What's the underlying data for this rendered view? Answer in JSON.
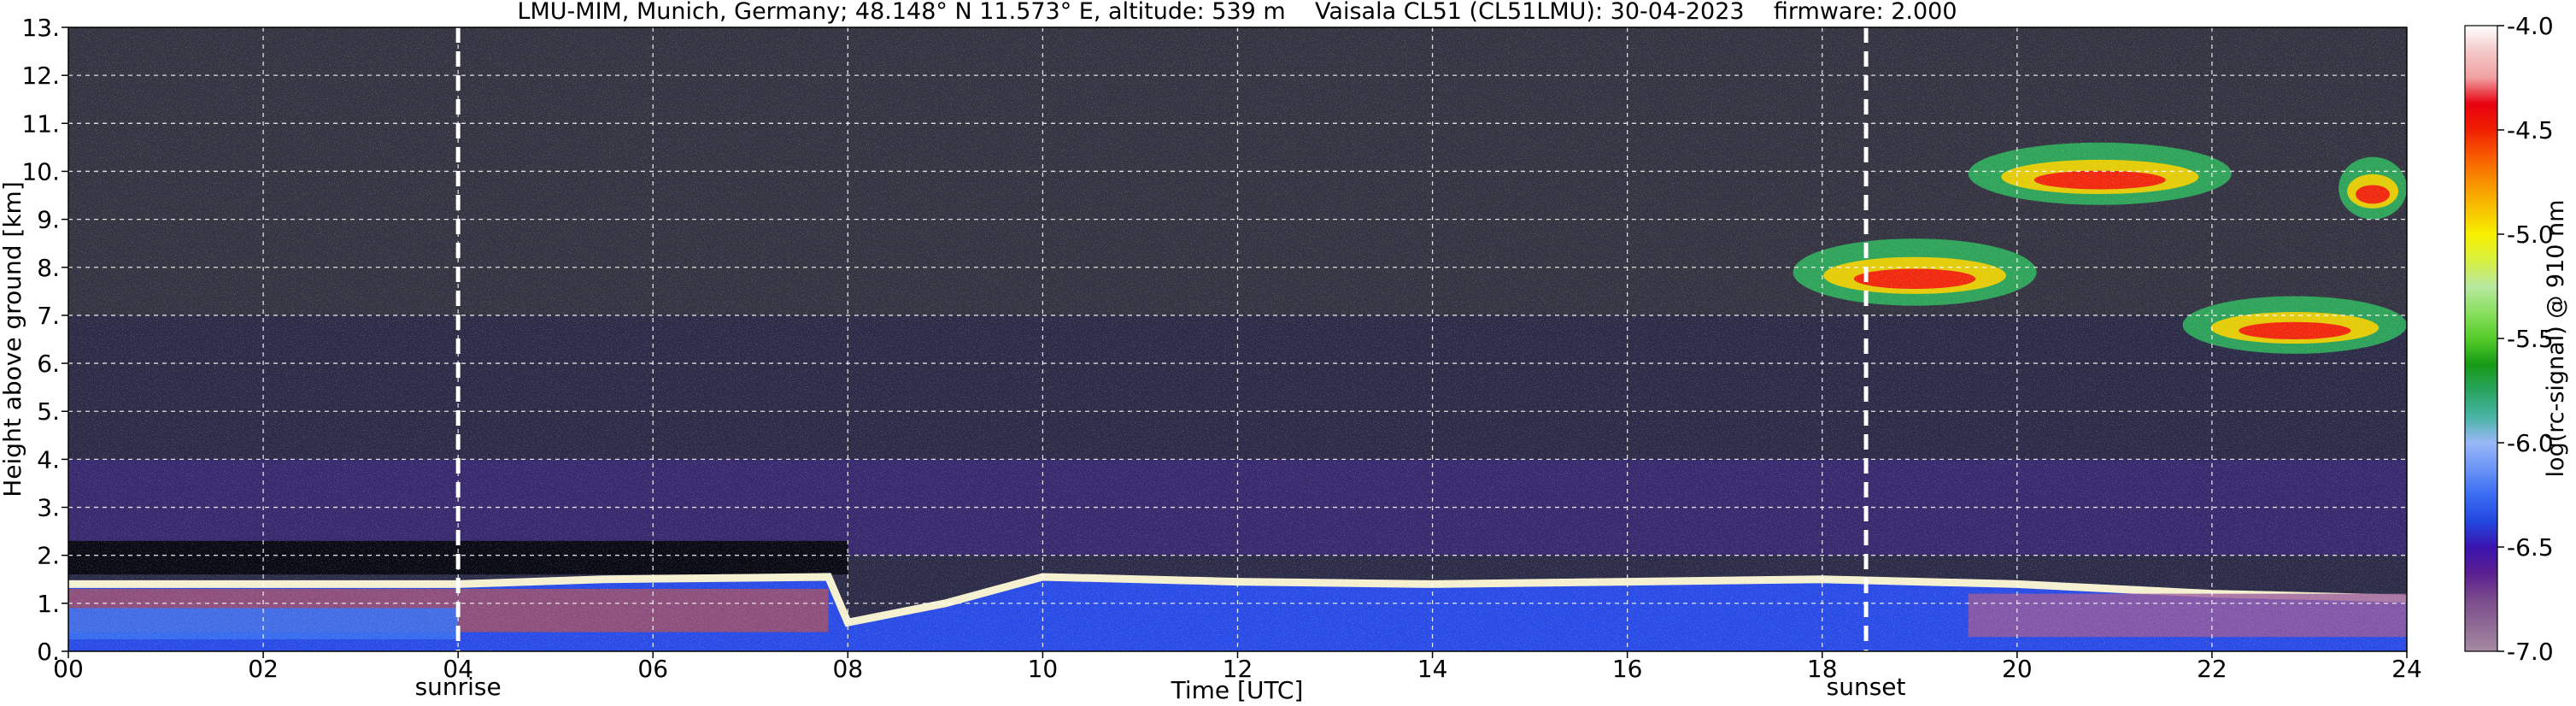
{
  "chart_data": {
    "type": "heatmap",
    "title": "LMU-MIM, Munich, Germany; 48.148° N 11.573° E, altitude: 539 m    Vaisala CL51 (CL51LMU): 30-04-2023    firmware: 2.000",
    "xlabel": "Time [UTC]",
    "ylabel": "Height above ground [km]",
    "colorbar_label": "log(rc-signal) @ 910 nm",
    "xlim": [
      0,
      24
    ],
    "ylim": [
      0,
      13
    ],
    "clim": [
      -7.0,
      -4.0
    ],
    "grid": true,
    "x_ticks": [
      0,
      2,
      4,
      6,
      8,
      10,
      12,
      14,
      16,
      18,
      20,
      22,
      24
    ],
    "x_tick_labels": [
      "00",
      "02",
      "04",
      "06",
      "08",
      "10",
      "12",
      "14",
      "16",
      "18",
      "20",
      "22",
      "24"
    ],
    "y_ticks": [
      0,
      1,
      2,
      3,
      4,
      5,
      6,
      7,
      8,
      9,
      10,
      11,
      12,
      13
    ],
    "y_tick_labels": [
      "0.",
      "1.",
      "2.",
      "3.",
      "4.",
      "5.",
      "6.",
      "7.",
      "8.",
      "9.",
      "10.",
      "11.",
      "12.",
      "13."
    ],
    "colorbar_ticks": [
      -4.0,
      -4.5,
      -5.0,
      -5.5,
      -6.0,
      -6.5,
      -7.0
    ],
    "colorbar_tick_labels": [
      "-4.0",
      "-4.5",
      "-5.0",
      "-5.5",
      "-6.0",
      "-6.5",
      "-7.0"
    ],
    "colormap": [
      "#a68aa2",
      "#8e6a95",
      "#7a4a8c",
      "#5a1e90",
      "#3a14b0",
      "#2248e0",
      "#3a6cf2",
      "#6a94f6",
      "#9ab8f8",
      "#48b4a4",
      "#28a460",
      "#159a15",
      "#55cc2a",
      "#8ae060",
      "#b8e8a0",
      "#d8f040",
      "#f8f000",
      "#f8c000",
      "#f89000",
      "#f85a00",
      "#f02000",
      "#e80010",
      "#f0a0a0",
      "#f4c8c8",
      "#ffffff"
    ],
    "annotations": [
      {
        "x": 4.0,
        "label": "sunrise",
        "style": "dashed-vertical"
      },
      {
        "x": 18.45,
        "label": "sunset",
        "style": "dashed-vertical"
      }
    ],
    "features": {
      "surface_aerosol_layer_top_km": [
        {
          "t": 0,
          "h": 1.4
        },
        {
          "t": 4,
          "h": 1.4
        },
        {
          "t": 5.5,
          "h": 1.5
        },
        {
          "t": 7.8,
          "h": 1.55
        },
        {
          "t": 8,
          "h": 0.6
        },
        {
          "t": 9,
          "h": 1.0
        },
        {
          "t": 10,
          "h": 1.55
        },
        {
          "t": 12,
          "h": 1.45
        },
        {
          "t": 14,
          "h": 1.4
        },
        {
          "t": 16,
          "h": 1.45
        },
        {
          "t": 18,
          "h": 1.5
        },
        {
          "t": 20,
          "h": 1.4
        },
        {
          "t": 22,
          "h": 1.2
        },
        {
          "t": 24,
          "h": 1.1
        }
      ],
      "upper_cloud_layers_km": [
        {
          "t_start": 17.7,
          "t_end": 20.2,
          "h_bottom": 7.2,
          "h_top": 8.6
        },
        {
          "t_start": 19.5,
          "t_end": 22.2,
          "h_bottom": 9.3,
          "h_top": 10.6
        },
        {
          "t_start": 21.7,
          "t_end": 24.0,
          "h_bottom": 6.2,
          "h_top": 7.4
        },
        {
          "t_start": 23.3,
          "t_end": 24.0,
          "h_bottom": 9.0,
          "h_top": 10.3
        }
      ]
    }
  }
}
